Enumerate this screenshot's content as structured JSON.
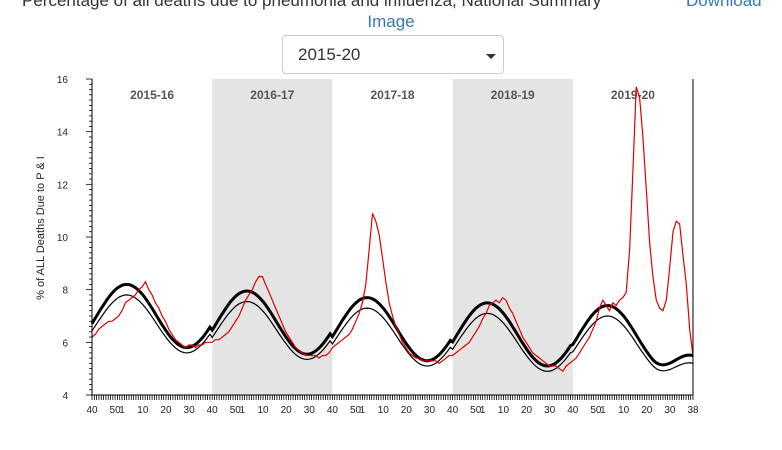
{
  "header": {
    "title": "Percentage of all deaths due to pneumonia and influenza, National Summary",
    "download_label": "Download",
    "image_label": "Image"
  },
  "season_select": {
    "selected": "2015-20"
  },
  "chart_data": {
    "type": "line",
    "ylabel": "% of ALL Deaths Due to P & I",
    "ylim": [
      4,
      16
    ],
    "y_ticks": [
      "4",
      "6",
      "8",
      "10",
      "12",
      "14",
      "16"
    ],
    "x_tick_labels": [
      "40",
      "50",
      "1",
      "10",
      "20",
      "30",
      "40",
      "50",
      "1",
      "10",
      "20",
      "30",
      "40",
      "50",
      "1",
      "10",
      "20",
      "30",
      "40",
      "50",
      "1",
      "10",
      "20",
      "30",
      "40",
      "50",
      "1",
      "10",
      "20",
      "30",
      "38"
    ],
    "seasons": [
      {
        "label": "2015-16",
        "shaded": false
      },
      {
        "label": "2016-17",
        "shaded": true
      },
      {
        "label": "2017-18",
        "shaded": false
      },
      {
        "label": "2018-19",
        "shaded": true
      },
      {
        "label": "2019-20",
        "shaded": false
      }
    ],
    "series": [
      {
        "role": "epidemic_threshold",
        "color": "#000000",
        "amplitude": 1.2,
        "baseline": [
          7.0,
          6.75,
          6.5,
          6.3,
          6.2
        ],
        "trough_end": 5.5
      },
      {
        "role": "seasonal_baseline",
        "color": "#000000",
        "amplitude": 1.1,
        "baseline": [
          6.7,
          6.45,
          6.2,
          6.0,
          5.9
        ],
        "trough_end": 5.2
      },
      {
        "role": "observed",
        "color": "#e00000",
        "values": [
          6.2,
          6.3,
          6.5,
          6.6,
          6.7,
          6.8,
          6.8,
          6.9,
          7.0,
          7.2,
          7.5,
          7.6,
          7.7,
          7.8,
          8.0,
          8.1,
          8.3,
          8.0,
          7.8,
          7.5,
          7.3,
          7.0,
          6.8,
          6.5,
          6.3,
          6.1,
          6.0,
          5.9,
          5.8,
          5.9,
          5.9,
          5.8,
          5.9,
          5.9,
          6.0,
          6.0,
          6.0,
          6.1,
          6.1,
          6.2,
          6.3,
          6.4,
          6.6,
          6.8,
          7.0,
          7.3,
          7.6,
          7.8,
          8.0,
          8.3,
          8.5,
          8.5,
          8.2,
          7.9,
          7.6,
          7.3,
          7.0,
          6.7,
          6.4,
          6.2,
          6.0,
          5.8,
          5.7,
          5.6,
          5.5,
          5.5,
          5.5,
          5.5,
          5.4,
          5.5,
          5.5,
          5.6,
          5.8,
          5.9,
          6.0,
          6.1,
          6.2,
          6.3,
          6.5,
          6.8,
          7.1,
          7.5,
          8.2,
          9.5,
          10.9,
          10.6,
          10.1,
          9.2,
          8.3,
          7.5,
          7.0,
          6.6,
          6.3,
          6.0,
          5.8,
          5.6,
          5.5,
          5.4,
          5.4,
          5.3,
          5.3,
          5.3,
          5.3,
          5.3,
          5.2,
          5.3,
          5.4,
          5.5,
          5.5,
          5.6,
          5.7,
          5.8,
          5.9,
          6.0,
          6.2,
          6.4,
          6.6,
          6.9,
          7.1,
          7.4,
          7.5,
          7.6,
          7.5,
          7.7,
          7.6,
          7.3,
          7.1,
          6.8,
          6.5,
          6.2,
          6.0,
          5.8,
          5.6,
          5.5,
          5.4,
          5.3,
          5.2,
          5.1,
          5.1,
          5.1,
          5.0,
          4.9,
          5.1,
          5.2,
          5.3,
          5.4,
          5.6,
          5.8,
          6.0,
          6.2,
          6.5,
          6.8,
          7.3,
          7.6,
          7.4,
          7.2,
          7.5,
          7.4,
          7.6,
          7.7,
          7.9,
          9.5,
          12.5,
          15.7,
          15.3,
          13.8,
          11.8,
          9.8,
          8.5,
          7.6,
          7.3,
          7.2,
          7.6,
          8.8,
          10.2,
          10.6,
          10.5,
          9.3,
          8.2,
          6.5,
          5.5
        ]
      }
    ]
  }
}
